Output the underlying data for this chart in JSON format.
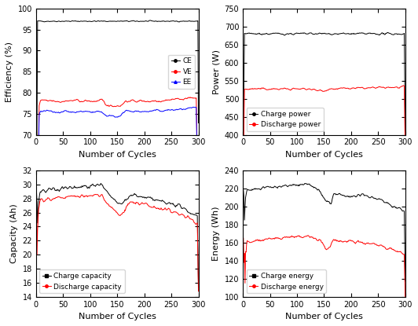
{
  "fig_width": 5.32,
  "fig_height": 4.15,
  "dpi": 100,
  "n_cycles": 300,
  "ax1": {
    "ylabel": "Efficiency (%)",
    "xlabel": "Number of Cycles",
    "ylim": [
      70,
      100
    ],
    "yticks": [
      70,
      75,
      80,
      85,
      90,
      95,
      100
    ],
    "xlim": [
      0,
      300
    ],
    "xticks": [
      0,
      50,
      100,
      150,
      200,
      250,
      300
    ]
  },
  "ax2": {
    "ylabel": "Power (W)",
    "xlabel": "Number of Cycles",
    "ylim": [
      400,
      750
    ],
    "yticks": [
      400,
      450,
      500,
      550,
      600,
      650,
      700,
      750
    ],
    "xlim": [
      0,
      300
    ],
    "xticks": [
      0,
      50,
      100,
      150,
      200,
      250,
      300
    ]
  },
  "ax3": {
    "ylabel": "Capacity (Ah)",
    "xlabel": "Number of Cycles",
    "ylim": [
      14,
      32
    ],
    "yticks": [
      14,
      16,
      18,
      20,
      22,
      24,
      26,
      28,
      30,
      32
    ],
    "xlim": [
      0,
      300
    ],
    "xticks": [
      0,
      50,
      100,
      150,
      200,
      250,
      300
    ]
  },
  "ax4": {
    "ylabel": "Energy (Wh)",
    "xlabel": "Number of Cycles",
    "ylim": [
      100,
      240
    ],
    "yticks": [
      100,
      120,
      140,
      160,
      180,
      200,
      220,
      240
    ],
    "xlim": [
      0,
      300
    ],
    "xticks": [
      0,
      50,
      100,
      150,
      200,
      250,
      300
    ]
  },
  "tick_fontsize": 7,
  "label_fontsize": 8,
  "legend_fontsize": 6.5,
  "line_width": 0.7,
  "marker_size": 2.5
}
